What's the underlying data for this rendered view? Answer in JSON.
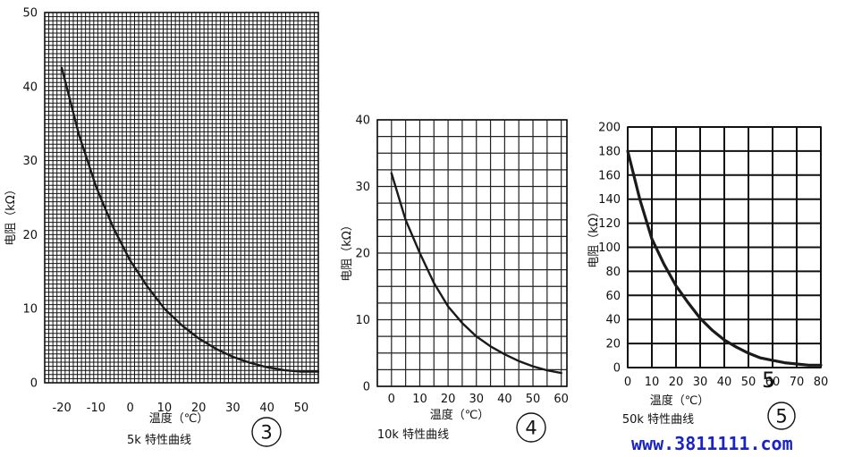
{
  "chart_data": [
    {
      "type": "line",
      "ylabel": "电阻（kΩ）",
      "xlabel": "温度（℃）",
      "caption": "5k 特性曲线",
      "number": "3",
      "xlim": [
        -25,
        55
      ],
      "ylim": [
        0,
        50
      ],
      "x_ticks": [
        "-20",
        "-10",
        "0",
        "10",
        "20",
        "30",
        "40",
        "50"
      ],
      "y_ticks": [
        "0",
        "10",
        "20",
        "30",
        "40",
        "50"
      ],
      "series": [
        {
          "x": [
            -20,
            -15,
            -10,
            -5,
            0,
            5,
            10,
            15,
            20,
            25,
            30,
            35,
            40,
            45,
            50,
            55
          ],
          "y": [
            42.5,
            33.5,
            26.5,
            21.0,
            16.5,
            13.0,
            10.0,
            7.8,
            6.0,
            4.6,
            3.5,
            2.7,
            2.1,
            1.7,
            1.5,
            1.5
          ]
        }
      ]
    },
    {
      "type": "line",
      "ylabel": "电阻（kΩ）",
      "xlabel": "温度（℃）",
      "caption": "10k 特性曲线",
      "number": "4",
      "xlim": [
        -5,
        62
      ],
      "ylim": [
        0,
        40
      ],
      "x_ticks": [
        "0",
        "10",
        "20",
        "30",
        "40",
        "50",
        "60"
      ],
      "y_ticks": [
        "0",
        "10",
        "20",
        "30",
        "40"
      ],
      "series": [
        {
          "x": [
            0,
            5,
            10,
            15,
            20,
            25,
            30,
            35,
            40,
            45,
            50,
            55,
            60
          ],
          "y": [
            32.0,
            25.0,
            20.0,
            15.5,
            12.0,
            9.5,
            7.5,
            6.0,
            4.8,
            3.8,
            3.0,
            2.4,
            2.0
          ]
        }
      ]
    },
    {
      "type": "line",
      "ylabel": "电阻（kΩ）",
      "xlabel": "温度（℃）",
      "caption": "50k 特性曲线",
      "number": "5",
      "xlim": [
        0,
        80
      ],
      "ylim": [
        0,
        200
      ],
      "x_ticks": [
        "0",
        "10",
        "20",
        "30",
        "40",
        "50",
        "60",
        "70",
        "80"
      ],
      "y_ticks": [
        "0",
        "20",
        "40",
        "60",
        "80",
        "100",
        "120",
        "140",
        "160",
        "180",
        "200"
      ],
      "series": [
        {
          "x": [
            0,
            5,
            10,
            15,
            20,
            25,
            30,
            35,
            40,
            45,
            50,
            55,
            60,
            65,
            70,
            75,
            80
          ],
          "y": [
            180,
            140,
            107,
            86,
            68,
            54,
            41,
            31,
            23,
            17,
            12,
            8,
            6,
            4,
            3,
            2,
            2
          ]
        }
      ]
    }
  ],
  "watermark": "www.3811111.com",
  "stray_mark": "5"
}
